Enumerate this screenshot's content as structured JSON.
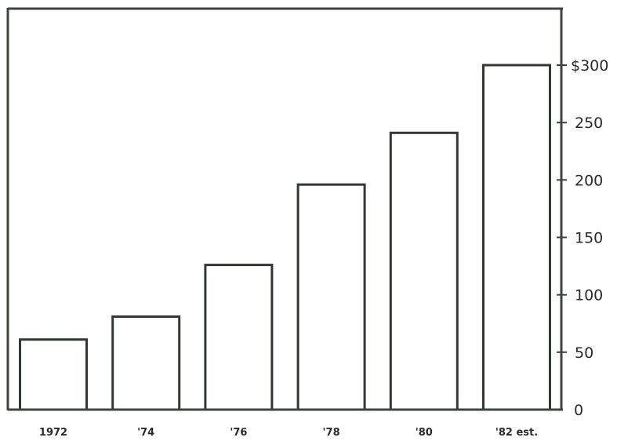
{
  "chart_data": {
    "type": "bar",
    "categories": [
      "1972",
      "'74",
      "'76",
      "'78",
      "'80",
      "'82 est."
    ],
    "values": [
      61,
      81,
      126,
      196,
      241,
      300
    ],
    "ylim": [
      0,
      350
    ],
    "y_ticks": [
      0,
      50,
      100,
      150,
      200,
      250,
      300
    ],
    "y_tick_labels": [
      "0",
      "50",
      "100",
      "150",
      "200",
      "250",
      "$300"
    ],
    "y_axis_side": "right",
    "grid": false,
    "bar_fill": "#ffffff",
    "bar_stroke": "#2f3a31",
    "axis_color": "#3b463d"
  }
}
